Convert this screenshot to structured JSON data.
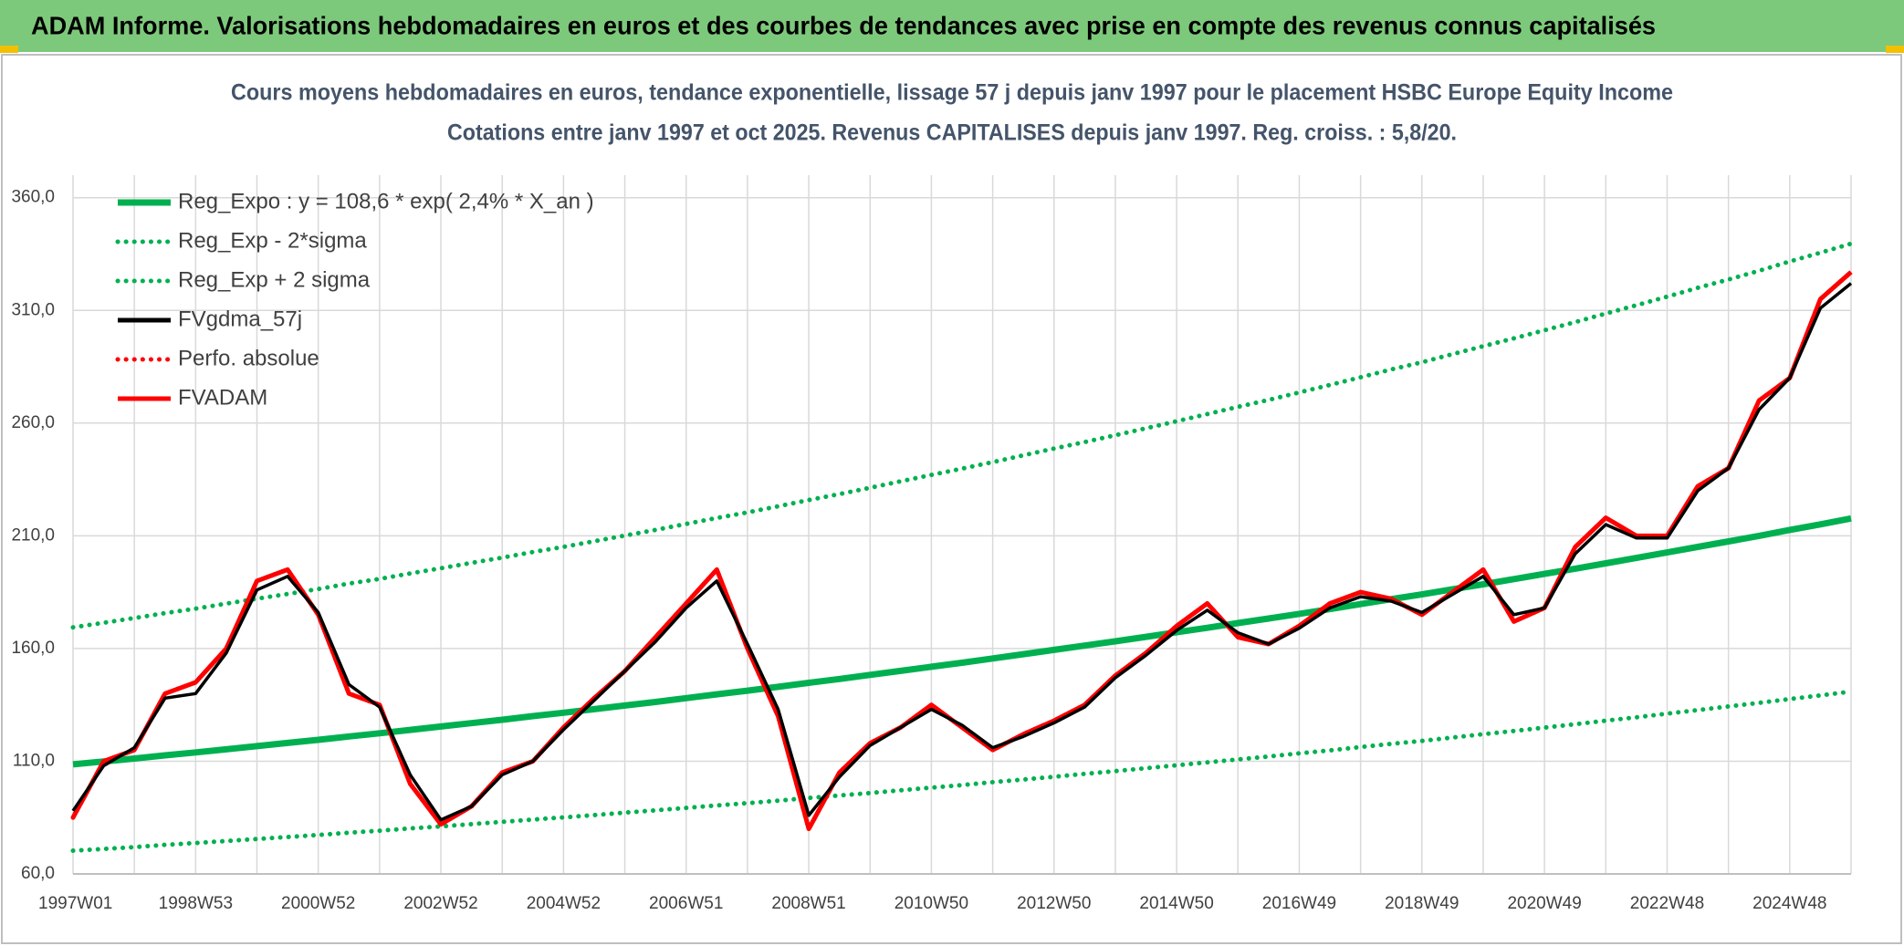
{
  "chart_data": {
    "type": "line",
    "title": "ADAM Informe. Valorisations hebdomadaires en euros et des courbes de tendances avec prise en compte des revenus connus capitalisés",
    "subtitle": [
      "Cours moyens hebdomadaires en euros, tendance exponentielle, lissage 57 j depuis janv 1997 pour le placement HSBC Europe Equity Income",
      "Cotations entre janv 1997 et oct 2025. Revenus CAPITALISES depuis janv 1997. Reg. croiss. : 5,8/20."
    ],
    "categories": [
      "1997W01",
      null,
      null,
      null,
      "1998W53",
      null,
      null,
      null,
      "2000W52",
      null,
      null,
      null,
      "2002W52",
      null,
      null,
      null,
      "2004W52",
      null,
      null,
      null,
      "2006W51",
      null,
      null,
      null,
      "2008W51",
      null,
      null,
      null,
      "2010W50",
      null,
      null,
      null,
      "2012W50",
      null,
      null,
      null,
      "2014W50",
      null,
      null,
      null,
      "2016W49",
      null,
      null,
      null,
      "2018W49",
      null,
      null,
      null,
      "2020W49",
      null,
      null,
      null,
      "2022W48",
      null,
      null,
      null,
      "2024W48",
      null,
      null
    ],
    "ylim": [
      60,
      370
    ],
    "yticks": [
      {
        "value": 60,
        "label": "60,0"
      },
      {
        "value": 110,
        "label": "110,0"
      },
      {
        "value": 160,
        "label": "160,0"
      },
      {
        "value": 210,
        "label": "210,0"
      },
      {
        "value": 260,
        "label": "260,0"
      },
      {
        "value": 310,
        "label": "310,0"
      },
      {
        "value": 360,
        "label": "360,0"
      }
    ],
    "grid": true,
    "legend": "upper left",
    "series": [
      {
        "name": "Reg_Expo : y = 108,6 * exp( 2,4% *  X_an )",
        "color": "#00b050",
        "line_style": "solid",
        "values": [
          108.6,
          109.9,
          111.2,
          112.6,
          113.9,
          115.3,
          116.7,
          118.1,
          119.5,
          121.0,
          122.4,
          123.9,
          125.4,
          126.9,
          128.4,
          130.0,
          131.5,
          133.1,
          134.7,
          136.3,
          138.0,
          139.7,
          141.3,
          143.0,
          144.8,
          146.5,
          148.3,
          150.1,
          151.9,
          153.7,
          155.6,
          157.5,
          159.4,
          161.3,
          163.2,
          165.2,
          167.2,
          169.2,
          171.3,
          173.3,
          175.4,
          177.5,
          179.7,
          181.9,
          184.0,
          186.3,
          188.5,
          190.8,
          193.1,
          195.4,
          197.8,
          200.2,
          202.6,
          205.1,
          207.5,
          210.0,
          212.6,
          215.1,
          217.7
        ]
      },
      {
        "name": "Reg_Exp - 2*sigma",
        "color": "#00b050",
        "line_style": "dotted",
        "values": [
          70.3,
          71.1,
          71.9,
          72.9,
          73.7,
          74.6,
          75.5,
          76.4,
          77.3,
          78.3,
          79.2,
          80.2,
          81.1,
          82.1,
          83.1,
          84.1,
          85.1,
          86.1,
          87.2,
          88.2,
          89.3,
          90.4,
          91.4,
          92.5,
          93.7,
          94.8,
          95.9,
          97.1,
          98.3,
          99.4,
          100.7,
          101.9,
          103.1,
          104.4,
          105.6,
          106.9,
          108.2,
          109.5,
          110.8,
          112.1,
          113.5,
          114.8,
          116.3,
          117.7,
          119.0,
          120.5,
          122.0,
          123.4,
          124.9,
          126.4,
          128.0,
          129.5,
          131.1,
          132.7,
          134.3,
          135.9,
          137.6,
          139.2,
          140.9
        ]
      },
      {
        "name": "Reg_Exp + 2 sigma",
        "color": "#00b050",
        "line_style": "dotted",
        "values": [
          169.4,
          171.4,
          173.5,
          175.7,
          177.7,
          179.9,
          182.1,
          184.2,
          186.4,
          188.8,
          190.9,
          193.3,
          195.6,
          198.0,
          200.3,
          202.8,
          205.1,
          207.6,
          210.1,
          212.6,
          215.3,
          217.9,
          220.4,
          223.1,
          225.9,
          228.5,
          231.3,
          234.2,
          237.0,
          239.8,
          242.7,
          245.7,
          248.7,
          251.6,
          254.6,
          257.7,
          260.8,
          264.0,
          267.2,
          270.3,
          273.6,
          276.9,
          280.3,
          283.8,
          287.0,
          290.6,
          294.1,
          297.6,
          301.2,
          304.8,
          308.6,
          312.3,
          316.1,
          320.0,
          323.7,
          327.6,
          331.7,
          335.6,
          339.6
        ]
      },
      {
        "name": "FVgdma_57j",
        "color": "#000000",
        "line_style": "solid",
        "values": [
          88,
          108,
          116,
          138,
          140,
          158,
          186,
          192,
          176,
          144,
          134,
          104,
          84,
          90,
          104,
          110,
          124,
          137,
          150,
          163,
          178,
          190,
          162,
          133,
          86,
          103,
          117,
          125,
          133,
          126,
          116,
          121,
          127,
          134,
          147,
          157,
          168,
          177,
          167,
          162,
          169,
          178,
          183,
          181,
          176,
          184,
          192,
          175,
          178,
          202,
          215,
          209,
          209,
          230,
          240,
          266,
          280,
          311,
          322
        ]
      },
      {
        "name": "Perfo. absolue",
        "color": "#ff0000",
        "line_style": "dotted",
        "values": [
          85,
          110,
          115,
          140,
          145,
          160,
          190,
          195,
          175,
          140,
          135,
          100,
          82,
          90,
          105,
          110,
          125,
          138,
          150,
          165,
          180,
          195,
          160,
          130,
          80,
          105,
          118,
          125,
          135,
          125,
          115,
          122,
          128,
          135,
          148,
          158,
          170,
          180,
          165,
          162,
          170,
          180,
          185,
          182,
          175,
          185,
          195,
          172,
          178,
          205,
          218,
          210,
          210,
          232,
          240,
          270,
          280,
          315,
          327
        ]
      },
      {
        "name": "FVADAM",
        "color": "#ff0000",
        "line_style": "solid",
        "values": [
          85,
          110,
          115,
          140,
          145,
          160,
          190,
          195,
          175,
          140,
          135,
          100,
          82,
          90,
          105,
          110,
          125,
          138,
          150,
          165,
          180,
          195,
          160,
          130,
          80,
          105,
          118,
          125,
          135,
          125,
          115,
          122,
          128,
          135,
          148,
          158,
          170,
          180,
          165,
          162,
          170,
          180,
          185,
          182,
          175,
          185,
          195,
          172,
          178,
          205,
          218,
          210,
          210,
          232,
          240,
          270,
          280,
          315,
          327
        ]
      }
    ]
  }
}
